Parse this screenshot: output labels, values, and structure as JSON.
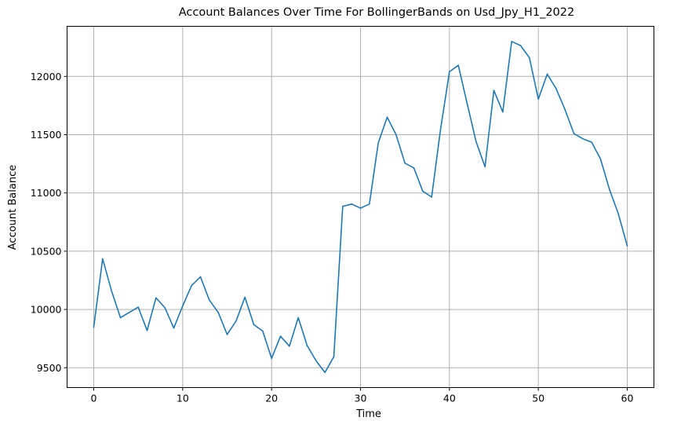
{
  "chart_data": {
    "type": "line",
    "title": "Account Balances Over Time For BollingerBands on Usd_Jpy_H1_2022",
    "xlabel": "Time",
    "ylabel": "Account Balance",
    "xlim": [
      -3,
      63
    ],
    "ylim": [
      9330,
      12430
    ],
    "xticks": [
      0,
      10,
      20,
      30,
      40,
      50,
      60
    ],
    "yticks": [
      9500,
      10000,
      10500,
      11000,
      11500,
      12000
    ],
    "grid": true,
    "line_color": "#1f77b4",
    "series": [
      {
        "x": [
          0,
          1,
          2,
          3,
          4,
          5,
          6,
          7,
          8,
          9,
          10,
          11,
          12,
          13,
          14,
          15,
          16,
          17,
          18,
          19,
          20,
          21,
          22,
          23,
          24,
          25,
          26,
          27,
          28,
          29,
          30,
          31,
          32,
          33,
          34,
          35,
          36,
          37,
          38,
          39,
          40,
          41,
          42,
          43,
          44,
          45,
          46,
          47,
          48,
          49,
          50,
          51,
          52,
          53,
          54,
          55,
          56,
          57,
          58,
          59,
          60
        ],
        "values": [
          9850,
          10435,
          10160,
          9930,
          9975,
          10020,
          9820,
          10100,
          10015,
          9840,
          10030,
          10205,
          10280,
          10080,
          9975,
          9785,
          9900,
          10105,
          9870,
          9815,
          9580,
          9770,
          9685,
          9930,
          9690,
          9560,
          9460,
          9595,
          10885,
          10905,
          10870,
          10905,
          11430,
          11650,
          11500,
          11255,
          11215,
          11015,
          10965,
          11545,
          12040,
          12095,
          11765,
          11440,
          11225,
          11880,
          11695,
          12300,
          12265,
          12160,
          11805,
          12020,
          11895,
          11715,
          11510,
          11465,
          11435,
          11290,
          11030,
          10820,
          10545
        ]
      }
    ]
  }
}
